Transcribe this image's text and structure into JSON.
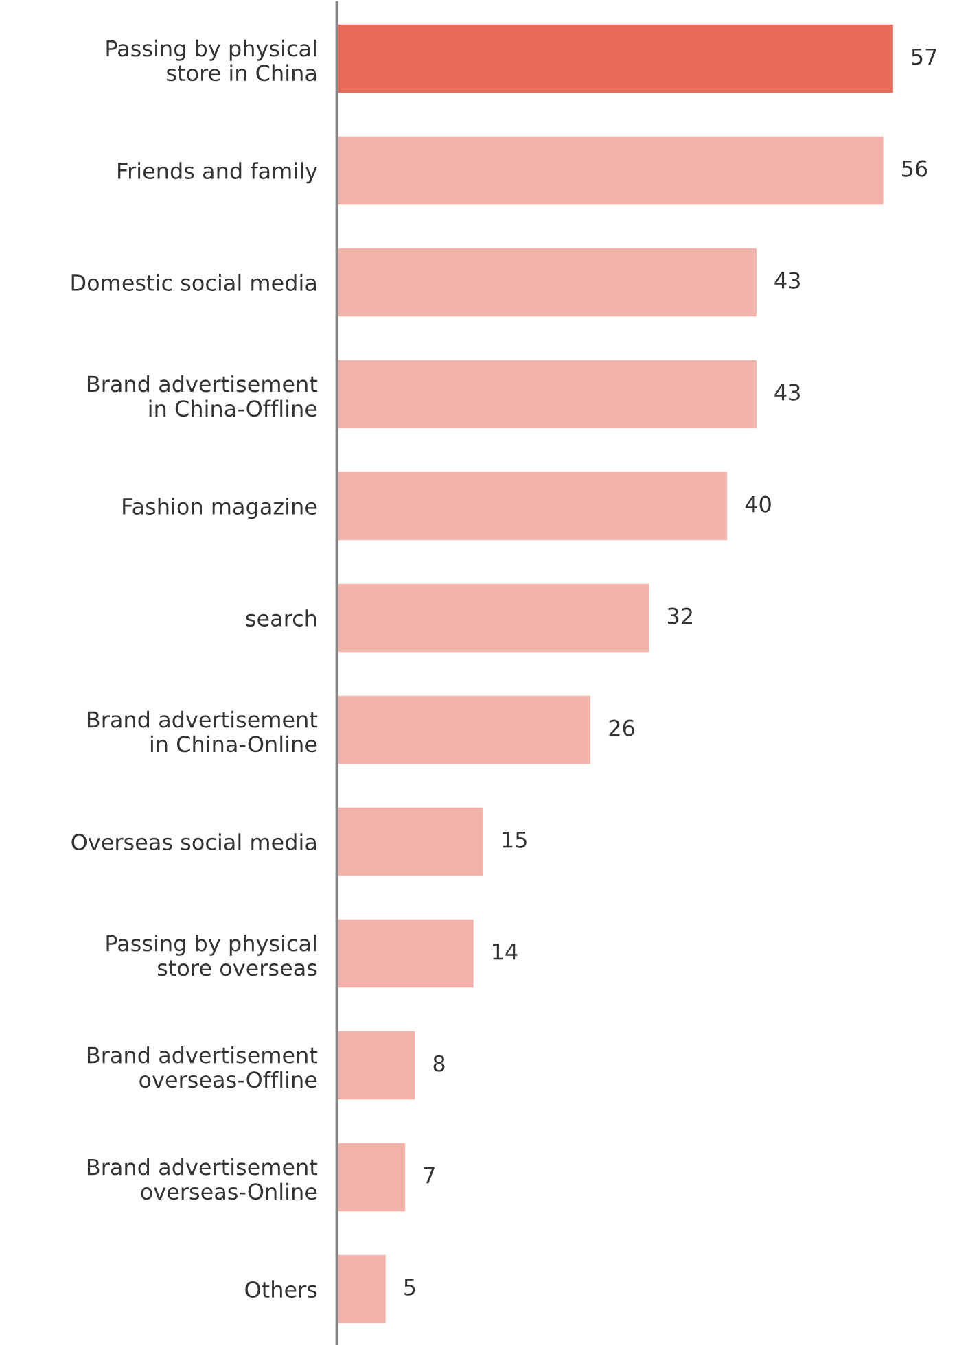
{
  "chart_data": {
    "type": "bar",
    "orientation": "horizontal",
    "data_labels": true,
    "grid": false,
    "legend": false,
    "categories": [
      "Passing by physical\nstore in China",
      "Friends and family",
      "Domestic social media",
      "Brand advertisement\nin China-Offline",
      "Fashion magazine",
      "search",
      "Brand advertisement\nin China-Online",
      "Overseas social media",
      "Passing by physical\nstore overseas",
      "Brand advertisement\noverseas-Offline",
      "Brand advertisement\noverseas-Online",
      "Others"
    ],
    "values": [
      57,
      56,
      43,
      43,
      40,
      32,
      26,
      15,
      14,
      8,
      7,
      5
    ],
    "colors": [
      "#e96b5c",
      "#f2b3ab",
      "#f2b3ab",
      "#f2b3ab",
      "#f2b3ab",
      "#f2b3ab",
      "#f2b3ab",
      "#f2b3ab",
      "#f2b3ab",
      "#f2b3ab",
      "#f2b3ab",
      "#f2b3ab"
    ]
  }
}
